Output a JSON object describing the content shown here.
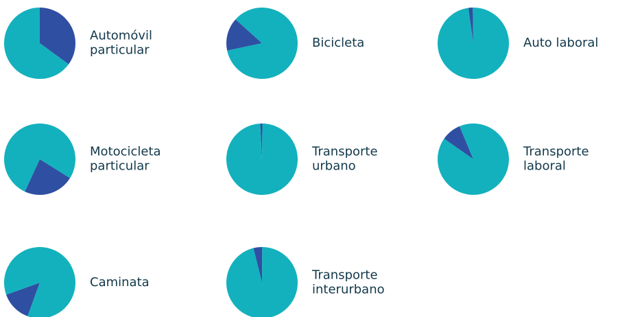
{
  "chart_data": [
    {
      "type": "pie",
      "title": [
        "Automóvil",
        "particular"
      ],
      "categories": [
        null,
        null
      ],
      "values": [
        35,
        65
      ],
      "colors": [
        "#2f4fa2",
        "#13b1bd"
      ],
      "startangle": 0
    },
    {
      "type": "pie",
      "title": [
        "Bicicleta"
      ],
      "categories": [
        null,
        null
      ],
      "values": [
        15,
        85
      ],
      "colors": [
        "#2f4fa2",
        "#13b1bd"
      ],
      "startangle": 258
    },
    {
      "type": "pie",
      "title": [
        "Auto laboral"
      ],
      "categories": [
        null,
        null
      ],
      "values": [
        2,
        98
      ],
      "colors": [
        "#2f4fa2",
        "#13b1bd"
      ],
      "startangle": 352
    },
    {
      "type": "pie",
      "title": [
        "Motocicleta",
        "particular"
      ],
      "categories": [
        null,
        null
      ],
      "values": [
        23,
        77
      ],
      "colors": [
        "#2f4fa2",
        "#13b1bd"
      ],
      "startangle": 122
    },
    {
      "type": "pie",
      "title": [
        "Transporte",
        "urbano"
      ],
      "categories": [
        null,
        null
      ],
      "values": [
        1,
        99
      ],
      "colors": [
        "#2f4fa2",
        "#13b1bd"
      ],
      "startangle": 357
    },
    {
      "type": "pie",
      "title": [
        "Transporte",
        "laboral"
      ],
      "categories": [
        null,
        null
      ],
      "values": [
        9,
        91
      ],
      "colors": [
        "#2f4fa2",
        "#13b1bd"
      ],
      "startangle": 305
    },
    {
      "type": "pie",
      "title": [
        "Caminata"
      ],
      "categories": [
        null,
        null
      ],
      "values": [
        14,
        86
      ],
      "colors": [
        "#2f4fa2",
        "#13b1bd"
      ],
      "startangle": 200
    },
    {
      "type": "pie",
      "title": [
        "Transporte",
        "interurbano"
      ],
      "categories": [
        null,
        null
      ],
      "values": [
        4,
        96
      ],
      "colors": [
        "#2f4fa2",
        "#13b1bd"
      ],
      "startangle": 346
    }
  ]
}
